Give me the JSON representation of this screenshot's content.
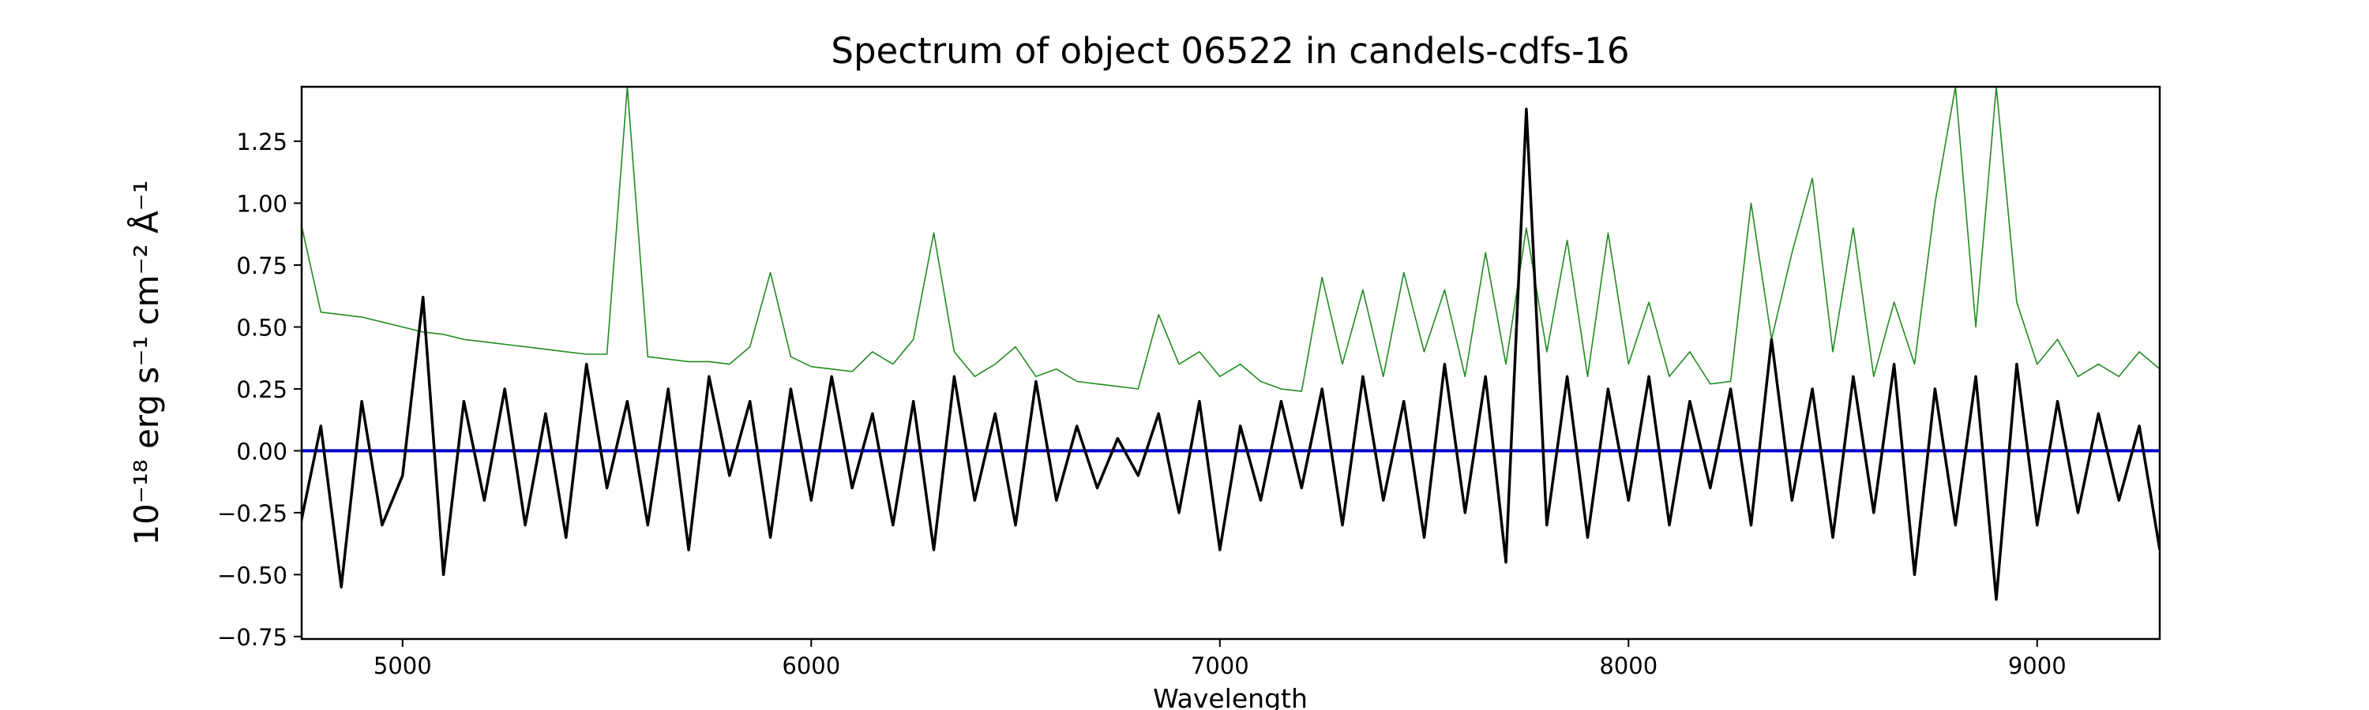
{
  "chart_data": {
    "type": "line",
    "title": "Spectrum of object 06522 in candels-cdfs-16",
    "x_label": "Wavelength",
    "y_label": "10⁻¹⁸ erg s⁻¹ cm⁻² Å⁻¹",
    "xlim": [
      4753,
      9300
    ],
    "ylim": [
      -0.76,
      1.47
    ],
    "xticks": [
      5000,
      6000,
      7000,
      8000,
      9000
    ],
    "yticks": [
      {
        "value": -0.75,
        "label": "−0.75"
      },
      {
        "value": -0.5,
        "label": "−0.50"
      },
      {
        "value": -0.25,
        "label": "−0.25"
      },
      {
        "value": 0,
        "label": "0.00"
      },
      0.25,
      {
        "value": 0.5,
        "label": "0.50"
      },
      0.75,
      {
        "value": 1,
        "label": "1.00"
      },
      1.25
    ],
    "x": [
      4750,
      4800,
      4850,
      4900,
      4950,
      5000,
      5050,
      5100,
      5150,
      5200,
      5250,
      5300,
      5350,
      5400,
      5450,
      5500,
      5550,
      5600,
      5650,
      5700,
      5750,
      5800,
      5850,
      5900,
      5950,
      6000,
      6050,
      6100,
      6150,
      6200,
      6250,
      6300,
      6350,
      6400,
      6450,
      6500,
      6550,
      6600,
      6650,
      6700,
      6750,
      6800,
      6850,
      6900,
      6950,
      7000,
      7050,
      7100,
      7150,
      7200,
      7250,
      7300,
      7350,
      7400,
      7450,
      7500,
      7550,
      7600,
      7650,
      7700,
      7750,
      7800,
      7850,
      7900,
      7950,
      8000,
      8050,
      8100,
      8150,
      8200,
      8250,
      8300,
      8350,
      8400,
      8450,
      8500,
      8550,
      8600,
      8650,
      8700,
      8750,
      8800,
      8850,
      8900,
      8950,
      9000,
      9050,
      9100,
      9150,
      9200,
      9250,
      9300
    ],
    "series": [
      {
        "color": "#228b22",
        "width": 1.6,
        "values": [
          0.93,
          0.56,
          0.55,
          0.54,
          0.52,
          0.5,
          0.48,
          0.47,
          0.45,
          0.44,
          0.43,
          0.42,
          0.41,
          0.4,
          0.39,
          0.39,
          1.47,
          0.38,
          0.37,
          0.36,
          0.36,
          0.35,
          0.42,
          0.72,
          0.38,
          0.34,
          0.33,
          0.32,
          0.4,
          0.35,
          0.45,
          0.88,
          0.4,
          0.3,
          0.35,
          0.42,
          0.3,
          0.33,
          0.28,
          0.27,
          0.26,
          0.25,
          0.55,
          0.35,
          0.4,
          0.3,
          0.35,
          0.28,
          0.25,
          0.24,
          0.7,
          0.35,
          0.65,
          0.3,
          0.72,
          0.4,
          0.65,
          0.3,
          0.8,
          0.35,
          0.9,
          0.4,
          0.85,
          0.3,
          0.88,
          0.35,
          0.6,
          0.3,
          0.4,
          0.27,
          0.28,
          1.0,
          0.45,
          0.8,
          1.1,
          0.4,
          0.9,
          0.3,
          0.6,
          0.35,
          1.0,
          1.47,
          0.5,
          1.47,
          0.6,
          0.35,
          0.45,
          0.3,
          0.35,
          0.3,
          0.4,
          0.33
        ]
      },
      {
        "color": "#0000cc",
        "width": 4,
        "values": [
          0,
          0,
          0,
          0,
          0,
          0,
          0,
          0,
          0,
          0,
          0,
          0,
          0,
          0,
          0,
          0,
          0,
          0,
          0,
          0,
          0,
          0,
          0,
          0,
          0,
          0,
          0,
          0,
          0,
          0,
          0,
          0,
          0,
          0,
          0,
          0,
          0,
          0,
          0,
          0,
          0,
          0,
          0,
          0,
          0,
          0,
          0,
          0,
          0,
          0,
          0,
          0,
          0,
          0,
          0,
          0,
          0,
          0,
          0,
          0,
          0,
          0,
          0,
          0,
          0,
          0,
          0,
          0,
          0,
          0,
          0,
          0,
          0,
          0,
          0,
          0,
          0,
          0,
          0,
          0,
          0,
          0,
          0,
          0,
          0,
          0,
          0,
          0,
          0,
          0,
          0,
          0
        ]
      },
      {
        "color": "#000000",
        "width": 3.5,
        "values": [
          -0.3,
          0.1,
          -0.55,
          0.2,
          -0.3,
          -0.1,
          0.62,
          -0.5,
          0.2,
          -0.2,
          0.25,
          -0.3,
          0.15,
          -0.35,
          0.35,
          -0.15,
          0.2,
          -0.3,
          0.25,
          -0.4,
          0.3,
          -0.1,
          0.2,
          -0.35,
          0.25,
          -0.2,
          0.3,
          -0.15,
          0.15,
          -0.3,
          0.2,
          -0.4,
          0.3,
          -0.2,
          0.15,
          -0.3,
          0.28,
          -0.2,
          0.1,
          -0.15,
          0.05,
          -0.1,
          0.15,
          -0.25,
          0.2,
          -0.4,
          0.1,
          -0.2,
          0.2,
          -0.15,
          0.25,
          -0.3,
          0.3,
          -0.2,
          0.2,
          -0.35,
          0.35,
          -0.25,
          0.3,
          -0.45,
          1.38,
          -0.3,
          0.3,
          -0.35,
          0.25,
          -0.2,
          0.3,
          -0.3,
          0.2,
          -0.15,
          0.25,
          -0.3,
          0.45,
          -0.2,
          0.25,
          -0.35,
          0.3,
          -0.25,
          0.35,
          -0.5,
          0.25,
          -0.3,
          0.3,
          -0.6,
          0.35,
          -0.3,
          0.2,
          -0.25,
          0.15,
          -0.2,
          0.1,
          -0.4
        ]
      }
    ]
  }
}
